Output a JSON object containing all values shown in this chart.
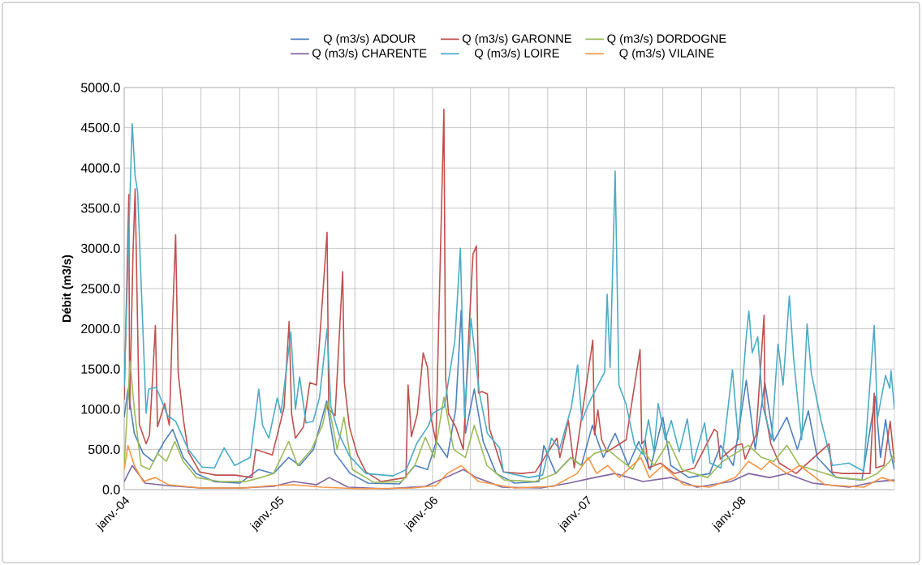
{
  "chart_data": {
    "type": "line",
    "ylabel": "Débit (m3/s)",
    "grid": true,
    "legend": "top",
    "marker": "none",
    "xlim": [
      "2004-01-01",
      "2008-12-31"
    ],
    "ylim": [
      0,
      5000
    ],
    "xticks": [
      {
        "value": "2004-01-01",
        "label": "janv.-04"
      },
      {
        "value": "2004-04-01",
        "label": null
      },
      {
        "value": "2004-07-01",
        "label": null
      },
      {
        "value": "2004-10-01",
        "label": null
      },
      {
        "value": "2005-01-01",
        "label": "janv.-05"
      },
      {
        "value": "2005-04-01",
        "label": null
      },
      {
        "value": "2005-07-01",
        "label": null
      },
      {
        "value": "2005-10-01",
        "label": null
      },
      {
        "value": "2006-01-01",
        "label": "janv.-06"
      },
      {
        "value": "2006-04-01",
        "label": null
      },
      {
        "value": "2006-07-01",
        "label": null
      },
      {
        "value": "2006-10-01",
        "label": null
      },
      {
        "value": "2007-01-01",
        "label": "janv.-07"
      },
      {
        "value": "2007-04-01",
        "label": null
      },
      {
        "value": "2007-07-01",
        "label": null
      },
      {
        "value": "2007-10-01",
        "label": null
      },
      {
        "value": "2008-01-01",
        "label": "janv.-08"
      },
      {
        "value": "2008-04-01",
        "label": null
      },
      {
        "value": "2008-07-01",
        "label": null
      },
      {
        "value": "2008-10-01",
        "label": null
      }
    ],
    "yticks": [
      {
        "value": 0,
        "label": "0.0"
      },
      {
        "value": 500,
        "label": "500.0"
      },
      {
        "value": 1000,
        "label": "1000.0"
      },
      {
        "value": 1500,
        "label": "1500.0"
      },
      {
        "value": 2000,
        "label": "2000.0"
      },
      {
        "value": 2500,
        "label": "2500.0"
      },
      {
        "value": 3000,
        "label": "3000.0"
      },
      {
        "value": 3500,
        "label": "3500.0"
      },
      {
        "value": 4000,
        "label": "4000.0"
      },
      {
        "value": 4500,
        "label": "4500.0"
      },
      {
        "value": 5000,
        "label": "5000.0"
      }
    ],
    "series": [
      {
        "name": "Q (m3/s) ADOUR",
        "color": "#4f81bd",
        "x": [
          "2004-01-01",
          "2004-01-10",
          "2004-01-25",
          "2004-02-15",
          "2004-03-10",
          "2004-04-05",
          "2004-04-25",
          "2004-05-20",
          "2004-06-20",
          "2004-08-01",
          "2004-10-01",
          "2004-11-15",
          "2004-12-20",
          "2005-01-25",
          "2005-02-20",
          "2005-03-25",
          "2005-04-25",
          "2005-05-15",
          "2005-06-20",
          "2005-08-01",
          "2005-10-15",
          "2005-11-20",
          "2005-12-20",
          "2006-01-10",
          "2006-02-05",
          "2006-02-25",
          "2006-03-10",
          "2006-03-20",
          "2006-04-10",
          "2006-05-01",
          "2006-06-01",
          "2006-07-15",
          "2006-09-10",
          "2006-09-22",
          "2006-10-20",
          "2006-11-25",
          "2006-12-20",
          "2007-01-15",
          "2007-02-10",
          "2007-03-10",
          "2007-04-10",
          "2007-05-05",
          "2007-06-01",
          "2007-07-01",
          "2007-07-20",
          "2007-09-01",
          "2007-10-20",
          "2007-11-15",
          "2007-12-15",
          "2008-01-15",
          "2008-02-05",
          "2008-02-28",
          "2008-03-20",
          "2008-04-20",
          "2008-05-15",
          "2008-06-10",
          "2008-07-01",
          "2008-08-15",
          "2008-10-15",
          "2008-11-16",
          "2008-11-28",
          "2008-12-10",
          "2008-12-20",
          "2008-12-31"
        ],
        "values": [
          900,
          1250,
          700,
          450,
          350,
          600,
          750,
          400,
          200,
          100,
          80,
          250,
          200,
          400,
          300,
          500,
          1100,
          450,
          200,
          80,
          70,
          300,
          250,
          600,
          400,
          1000,
          2230,
          700,
          1250,
          600,
          200,
          80,
          100,
          550,
          200,
          400,
          300,
          800,
          400,
          700,
          300,
          600,
          250,
          900,
          300,
          150,
          200,
          550,
          300,
          1360,
          500,
          1330,
          600,
          900,
          500,
          980,
          400,
          150,
          120,
          1160,
          400,
          870,
          500,
          250
        ]
      },
      {
        "name": "Q (m3/s) GARONNE",
        "color": "#c0504d",
        "x": [
          "2004-01-01",
          "2004-01-12",
          "2004-01-14",
          "2004-01-22",
          "2004-01-27",
          "2004-02-06",
          "2004-02-22",
          "2004-03-01",
          "2004-03-15",
          "2004-03-20",
          "2004-04-06",
          "2004-04-17",
          "2004-04-25",
          "2004-05-02",
          "2004-05-08",
          "2004-05-21",
          "2004-06-01",
          "2004-06-28",
          "2004-08-05",
          "2004-09-20",
          "2004-10-30",
          "2004-11-08",
          "2004-12-17",
          "2005-01-14",
          "2005-01-26",
          "2005-02-01",
          "2005-02-10",
          "2005-03-01",
          "2005-03-16",
          "2005-04-01",
          "2005-04-26",
          "2005-04-30",
          "2005-05-15",
          "2005-06-02",
          "2005-06-06",
          "2005-06-18",
          "2005-07-07",
          "2005-07-27",
          "2005-09-01",
          "2005-10-30",
          "2005-11-04",
          "2005-11-12",
          "2005-11-26",
          "2005-12-10",
          "2005-12-20",
          "2005-12-29",
          "2006-01-09",
          "2006-01-28",
          "2006-02-01",
          "2006-02-08",
          "2006-02-25",
          "2006-03-15",
          "2006-03-30",
          "2006-04-07",
          "2006-04-15",
          "2006-04-20",
          "2006-04-28",
          "2006-05-11",
          "2006-05-16",
          "2006-06-09",
          "2006-06-18",
          "2006-07-31",
          "2006-09-02",
          "2006-10-23",
          "2006-10-30",
          "2006-11-19",
          "2006-12-03",
          "2007-01-16",
          "2007-01-20",
          "2007-01-28",
          "2007-02-06",
          "2007-02-19",
          "2007-04-05",
          "2007-05-08",
          "2007-05-12",
          "2007-05-20",
          "2007-05-28",
          "2007-06-26",
          "2007-07-28",
          "2007-09-14",
          "2007-10-31",
          "2007-11-07",
          "2007-11-14",
          "2007-12-22",
          "2008-01-05",
          "2008-01-12",
          "2008-02-07",
          "2008-02-26",
          "2008-02-28",
          "2008-03-13",
          "2008-04-02",
          "2008-05-12",
          "2008-07-29",
          "2008-08-05",
          "2008-08-30",
          "2008-11-03",
          "2008-11-13",
          "2008-11-17",
          "2008-12-06",
          "2008-12-21",
          "2008-12-31"
        ],
        "values": [
          1120,
          3670,
          1000,
          2960,
          3740,
          810,
          570,
          680,
          2040,
          780,
          1070,
          800,
          2180,
          3170,
          1450,
          850,
          470,
          220,
          180,
          180,
          150,
          500,
          430,
          1020,
          2090,
          940,
          640,
          780,
          1330,
          1300,
          3200,
          1000,
          920,
          2710,
          1330,
          780,
          430,
          220,
          100,
          150,
          1300,
          660,
          940,
          1700,
          1520,
          880,
          600,
          4730,
          1390,
          940,
          780,
          500,
          2140,
          2930,
          3030,
          1200,
          1220,
          1190,
          760,
          360,
          220,
          200,
          220,
          640,
          400,
          860,
          270,
          1860,
          680,
          990,
          620,
          470,
          620,
          1740,
          570,
          620,
          270,
          330,
          200,
          270,
          750,
          720,
          380,
          550,
          570,
          380,
          680,
          2170,
          980,
          570,
          330,
          200,
          570,
          220,
          200,
          200,
          1200,
          270,
          300,
          850,
          330
        ]
      },
      {
        "name": "Q (m3/s) DORDOGNE",
        "color": "#9bbb59",
        "x": [
          "2004-01-01",
          "2004-01-15",
          "2004-01-25",
          "2004-02-10",
          "2004-03-01",
          "2004-03-20",
          "2004-04-10",
          "2004-04-30",
          "2004-05-20",
          "2004-06-20",
          "2004-08-15",
          "2004-10-15",
          "2004-11-20",
          "2004-12-20",
          "2005-01-25",
          "2005-02-15",
          "2005-03-20",
          "2005-04-15",
          "2005-04-28",
          "2005-05-20",
          "2005-06-05",
          "2005-06-25",
          "2005-08-15",
          "2005-10-20",
          "2005-11-20",
          "2005-12-15",
          "2006-01-05",
          "2006-01-28",
          "2006-02-20",
          "2006-03-20",
          "2006-04-10",
          "2006-05-10",
          "2006-06-20",
          "2006-09-01",
          "2006-10-20",
          "2006-11-25",
          "2006-12-20",
          "2007-01-20",
          "2007-02-20",
          "2007-03-15",
          "2007-04-20",
          "2007-05-15",
          "2007-06-10",
          "2007-07-15",
          "2007-08-15",
          "2007-10-15",
          "2007-11-20",
          "2007-12-20",
          "2008-01-20",
          "2008-02-20",
          "2008-03-20",
          "2008-04-20",
          "2008-05-20",
          "2008-06-20",
          "2008-08-20",
          "2008-10-20",
          "2008-11-20",
          "2008-12-20",
          "2008-12-31"
        ],
        "values": [
          300,
          1600,
          1000,
          300,
          250,
          450,
          350,
          600,
          350,
          150,
          100,
          100,
          150,
          200,
          600,
          300,
          500,
          800,
          1100,
          500,
          900,
          250,
          90,
          100,
          300,
          650,
          400,
          1150,
          500,
          400,
          800,
          300,
          120,
          100,
          200,
          400,
          300,
          450,
          500,
          400,
          250,
          500,
          300,
          600,
          250,
          150,
          350,
          450,
          550,
          400,
          350,
          550,
          300,
          250,
          150,
          120,
          200,
          350,
          450
        ]
      },
      {
        "name": "Q (m3/s) CHARENTE",
        "color": "#8064a2",
        "x": [
          "2004-01-01",
          "2004-01-20",
          "2004-02-20",
          "2004-04-10",
          "2004-07-01",
          "2004-10-01",
          "2004-12-20",
          "2005-02-05",
          "2005-04-01",
          "2005-05-01",
          "2005-06-15",
          "2005-09-15",
          "2005-12-15",
          "2006-02-01",
          "2006-03-15",
          "2006-04-15",
          "2006-06-15",
          "2006-09-15",
          "2006-11-20",
          "2007-01-20",
          "2007-03-10",
          "2007-05-15",
          "2007-07-20",
          "2007-09-20",
          "2007-12-10",
          "2008-01-20",
          "2008-03-10",
          "2008-04-20",
          "2008-06-20",
          "2008-09-15",
          "2008-11-20",
          "2008-12-31"
        ],
        "values": [
          100,
          300,
          80,
          50,
          20,
          20,
          40,
          100,
          60,
          150,
          30,
          10,
          40,
          150,
          250,
          150,
          30,
          20,
          80,
          150,
          200,
          100,
          150,
          30,
          100,
          200,
          150,
          200,
          80,
          30,
          100,
          120
        ]
      },
      {
        "name": "Q (m3/s) LOIRE",
        "color": "#4bacc6",
        "x": [
          "2004-01-01",
          "2004-01-20",
          "2004-01-27",
          "2004-02-02",
          "2004-02-22",
          "2004-02-28",
          "2004-03-17",
          "2004-04-13",
          "2004-05-02",
          "2004-06-01",
          "2004-07-04",
          "2004-08-02",
          "2004-08-25",
          "2004-09-19",
          "2004-10-26",
          "2004-11-15",
          "2004-11-24",
          "2004-12-09",
          "2004-12-29",
          "2005-01-07",
          "2005-01-30",
          "2005-02-10",
          "2005-02-20",
          "2005-03-07",
          "2005-03-24",
          "2005-04-08",
          "2005-04-26",
          "2005-05-05",
          "2005-05-24",
          "2005-06-18",
          "2005-07-27",
          "2005-09-29",
          "2005-10-31",
          "2005-11-25",
          "2005-12-22",
          "2006-01-02",
          "2006-01-29",
          "2006-02-23",
          "2006-03-08",
          "2006-03-18",
          "2006-04-02",
          "2006-04-22",
          "2006-05-11",
          "2006-06-09",
          "2006-06-18",
          "2006-08-17",
          "2006-09-19",
          "2006-10-10",
          "2006-10-29",
          "2006-11-26",
          "2006-12-11",
          "2006-12-21",
          "2007-01-09",
          "2007-01-30",
          "2007-02-13",
          "2007-02-19",
          "2007-02-26",
          "2007-03-10",
          "2007-03-19",
          "2007-04-05",
          "2007-04-25",
          "2007-05-14",
          "2007-05-28",
          "2007-06-10",
          "2007-06-20",
          "2007-07-07",
          "2007-07-21",
          "2007-08-09",
          "2007-08-28",
          "2007-09-11",
          "2007-10-08",
          "2007-10-21",
          "2007-11-16",
          "2007-12-13",
          "2007-12-27",
          "2008-01-15",
          "2008-01-21",
          "2008-01-29",
          "2008-02-11",
          "2008-02-23",
          "2008-03-15",
          "2008-03-30",
          "2008-04-11",
          "2008-04-26",
          "2008-05-06",
          "2008-05-25",
          "2008-06-07",
          "2008-06-17",
          "2008-07-10",
          "2008-08-06",
          "2008-09-14",
          "2008-10-19",
          "2008-11-13",
          "2008-11-21",
          "2008-12-10",
          "2008-12-20",
          "2008-12-23",
          "2008-12-31"
        ],
        "values": [
          1280,
          4550,
          3900,
          3700,
          950,
          1250,
          1270,
          920,
          850,
          500,
          280,
          270,
          520,
          300,
          400,
          1250,
          800,
          640,
          1140,
          950,
          1960,
          1000,
          1400,
          830,
          850,
          1140,
          2000,
          1030,
          690,
          420,
          200,
          170,
          250,
          580,
          790,
          950,
          1030,
          1850,
          3000,
          900,
          2130,
          1200,
          700,
          520,
          220,
          150,
          180,
          640,
          500,
          1020,
          1550,
          860,
          1100,
          1320,
          1460,
          2430,
          1520,
          3960,
          1300,
          1060,
          560,
          440,
          870,
          470,
          1070,
          620,
          860,
          470,
          880,
          330,
          830,
          330,
          270,
          1490,
          620,
          1920,
          2220,
          1700,
          1900,
          1040,
          620,
          1810,
          1300,
          2410,
          1640,
          620,
          2060,
          1450,
          860,
          300,
          330,
          230,
          2040,
          890,
          1420,
          1260,
          1480,
          1000
        ]
      },
      {
        "name": "Q (m3/s) VILAINE",
        "color": "#f79646",
        "x": [
          "2004-01-01",
          "2004-01-10",
          "2004-01-25",
          "2004-02-15",
          "2004-03-15",
          "2004-04-15",
          "2004-07-01",
          "2004-10-15",
          "2004-12-15",
          "2005-02-05",
          "2005-04-15",
          "2005-07-15",
          "2005-11-15",
          "2006-01-10",
          "2006-02-05",
          "2006-03-10",
          "2006-04-20",
          "2006-07-15",
          "2006-10-15",
          "2006-12-10",
          "2007-01-05",
          "2007-01-25",
          "2007-02-20",
          "2007-03-20",
          "2007-05-10",
          "2007-05-30",
          "2007-07-01",
          "2007-08-20",
          "2007-10-20",
          "2007-12-20",
          "2008-01-20",
          "2008-02-20",
          "2008-03-10",
          "2008-04-20",
          "2008-05-20",
          "2008-07-20",
          "2008-10-20",
          "2008-12-01",
          "2008-12-31"
        ],
        "values": [
          250,
          550,
          300,
          100,
          150,
          60,
          20,
          20,
          50,
          60,
          30,
          10,
          20,
          50,
          200,
          300,
          100,
          20,
          40,
          200,
          400,
          200,
          300,
          150,
          400,
          150,
          300,
          60,
          30,
          150,
          350,
          250,
          350,
          200,
          300,
          60,
          30,
          150,
          100
        ]
      }
    ]
  }
}
